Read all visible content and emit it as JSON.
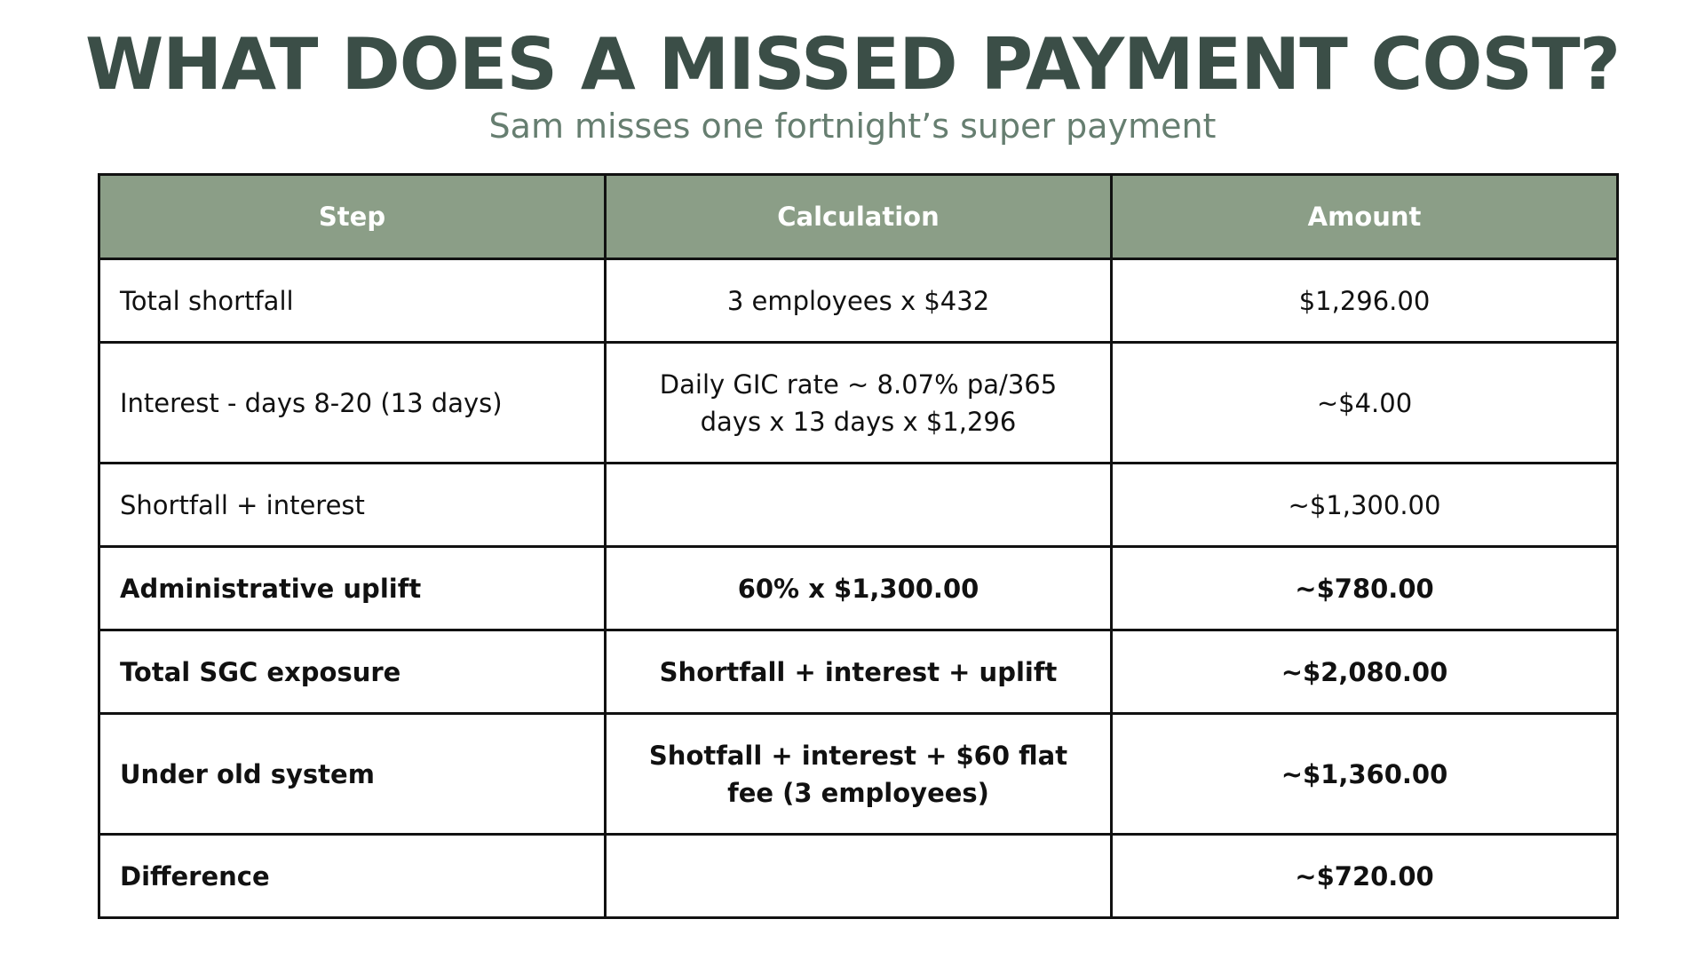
{
  "title": "WHAT DOES A MISSED PAYMENT COST?",
  "subtitle": "Sam misses one fortnight’s super payment",
  "colors": {
    "title": "#3b4e47",
    "subtitle": "#667e70",
    "header_bg": "#8b9e87",
    "header_text": "#ffffff",
    "border": "#111111"
  },
  "table": {
    "headers": [
      "Step",
      "Calculation",
      "Amount"
    ],
    "rows": [
      {
        "step": "Total shortfall",
        "calculation": "3 employees x $432",
        "amount": "$1,296.00",
        "bold": false
      },
      {
        "step": "Interest - days 8-20 (13 days)",
        "calculation": "Daily GIC rate ~ 8.07% pa/365 days x 13 days x $1,296",
        "amount": "~$4.00",
        "bold": false
      },
      {
        "step": "Shortfall + interest",
        "calculation": "",
        "amount": "~$1,300.00",
        "bold": false
      },
      {
        "step": "Administrative uplift",
        "calculation": "60% x $1,300.00",
        "amount": "~$780.00",
        "bold": true
      },
      {
        "step": "Total SGC exposure",
        "calculation": "Shortfall + interest + uplift",
        "amount": "~$2,080.00",
        "bold": true
      },
      {
        "step": "Under old system",
        "calculation": "Shotfall + interest + $60 flat fee (3 employees)",
        "amount": "~$1,360.00",
        "bold": true
      },
      {
        "step": "Difference",
        "calculation": "",
        "amount": "~$720.00",
        "bold": true
      }
    ]
  }
}
